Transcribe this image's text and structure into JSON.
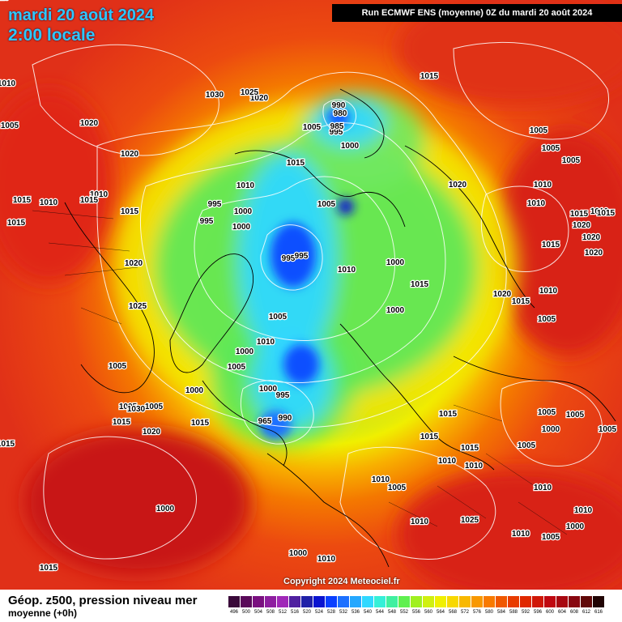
{
  "header": {
    "date": "mardi 20 août 2024",
    "time": "2:00 locale",
    "run": "Run ECMWF ENS (moyenne) 0Z du mardi 20 août 2024"
  },
  "copyright": "Copyright 2024 Meteociel.fr",
  "footer": {
    "title": "Géop. z500, pression niveau mer",
    "subtitle": "moyenne   (+0h)"
  },
  "legend": {
    "labels": [
      "496",
      "500",
      "504",
      "508",
      "512",
      "516",
      "520",
      "524",
      "528",
      "532",
      "536",
      "540",
      "544",
      "548",
      "552",
      "556",
      "560",
      "564",
      "568",
      "572",
      "576",
      "580",
      "584",
      "588",
      "592",
      "596",
      "600",
      "604",
      "608",
      "612",
      "616"
    ],
    "colors": [
      "#3a0a3a",
      "#5a0a5a",
      "#7a1080",
      "#8e1ea0",
      "#a028b8",
      "#5020a0",
      "#2020a8",
      "#0a14d0",
      "#0a40ff",
      "#1c70ff",
      "#25a8ff",
      "#30d8ff",
      "#35f0d8",
      "#40f0a0",
      "#60f050",
      "#a0f020",
      "#d0f010",
      "#f0f000",
      "#f8d800",
      "#f8b800",
      "#f89800",
      "#f87a00",
      "#f05800",
      "#e83c00",
      "#e02800",
      "#d01808",
      "#c00810",
      "#a80810",
      "#880810",
      "#600808",
      "#200404"
    ]
  },
  "pressure_labels": [
    "1010",
    "1005",
    "1015",
    "1020",
    "1020",
    "1030",
    "1025",
    "1020",
    "1005",
    "990",
    "980",
    "995",
    "985",
    "1000",
    "1015",
    "1005",
    "1005",
    "1005",
    "1010",
    "995",
    "1000",
    "995",
    "1000",
    "1005",
    "1020",
    "1010",
    "1010",
    "1015",
    "1015",
    "1010",
    "1015",
    "1010",
    "1015",
    "1015",
    "1020",
    "995",
    "995",
    "1010",
    "1000",
    "1015",
    "1020",
    "1020",
    "1020",
    "1005",
    "1010",
    "1010",
    "1015",
    "1020",
    "1015",
    "1025",
    "1000",
    "1000",
    "1005",
    "1005",
    "1015",
    "1015",
    "1005",
    "1005",
    "1000",
    "1005",
    "1030",
    "1010",
    "995",
    "1000",
    "990",
    "965",
    "1015",
    "1015",
    "1005",
    "1005",
    "1015",
    "1015",
    "1000",
    "1005",
    "1005",
    "1020",
    "1010",
    "1010",
    "1010",
    "1005",
    "1010",
    "1010",
    "1000",
    "1025",
    "1010",
    "1005",
    "1010",
    "1000",
    "1000",
    "1015",
    "1010",
    "1015",
    "1010"
  ]
}
